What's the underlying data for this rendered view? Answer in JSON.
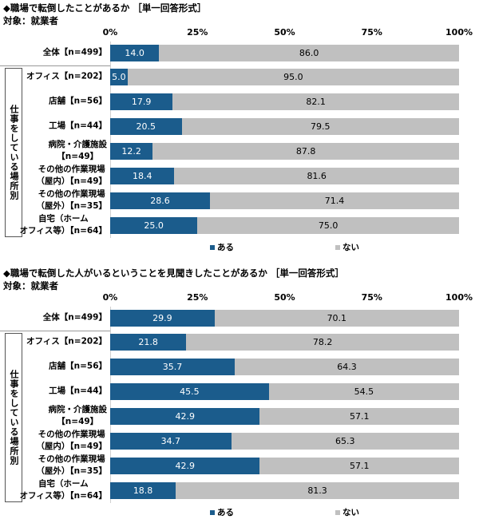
{
  "colors": {
    "yes": "#1b5c8c",
    "no": "#c0c0c0"
  },
  "chart_data": [
    {
      "type": "bar",
      "orientation": "horizontal",
      "stacked": true,
      "title": "◆職場で転倒したことがあるか ［単一回答形式］",
      "subtitle": "対象：就業者",
      "group_label": "仕事をしている場所別",
      "xlim": [
        0,
        100
      ],
      "ticks": [
        "0%",
        "25%",
        "50%",
        "75%",
        "100%"
      ],
      "legend": {
        "position": "bottom-right",
        "yes": "ある",
        "no": "ない"
      },
      "categories": [
        "全体【n=499】",
        "オフィス【n=202】",
        "店舗【n=56】",
        "工場【n=44】",
        "病院・介護施設\n【n=49】",
        "その他の作業現場\n（屋内）【n=49】",
        "その他の作業現場\n（屋外）【n=35】",
        "自宅（ホーム\nオフィス等）【n=64】"
      ],
      "series": [
        {
          "name": "ある",
          "values": [
            "14.0",
            "5.0",
            "17.9",
            "20.5",
            "12.2",
            "18.4",
            "28.6",
            "25.0"
          ]
        },
        {
          "name": "ない",
          "values": [
            "86.0",
            "95.0",
            "82.1",
            "79.5",
            "87.8",
            "81.6",
            "71.4",
            "75.0"
          ]
        }
      ]
    },
    {
      "type": "bar",
      "orientation": "horizontal",
      "stacked": true,
      "title": "◆職場で転倒した人がいるということを見聞きしたことがあるか ［単一回答形式］",
      "subtitle": "対象：就業者",
      "group_label": "仕事をしている場所別",
      "xlim": [
        0,
        100
      ],
      "ticks": [
        "0%",
        "25%",
        "50%",
        "75%",
        "100%"
      ],
      "legend": {
        "position": "bottom-right",
        "yes": "ある",
        "no": "ない"
      },
      "categories": [
        "全体【n=499】",
        "オフィス【n=202】",
        "店舗【n=56】",
        "工場【n=44】",
        "病院・介護施設\n【n=49】",
        "その他の作業現場\n（屋内）【n=49】",
        "その他の作業現場\n（屋外）【n=35】",
        "自宅（ホーム\nオフィス等）【n=64】"
      ],
      "series": [
        {
          "name": "ある",
          "values": [
            "29.9",
            "21.8",
            "35.7",
            "45.5",
            "42.9",
            "34.7",
            "42.9",
            "18.8"
          ]
        },
        {
          "name": "ない",
          "values": [
            "70.1",
            "78.2",
            "64.3",
            "54.5",
            "57.1",
            "65.3",
            "57.1",
            "81.3"
          ]
        }
      ]
    }
  ]
}
